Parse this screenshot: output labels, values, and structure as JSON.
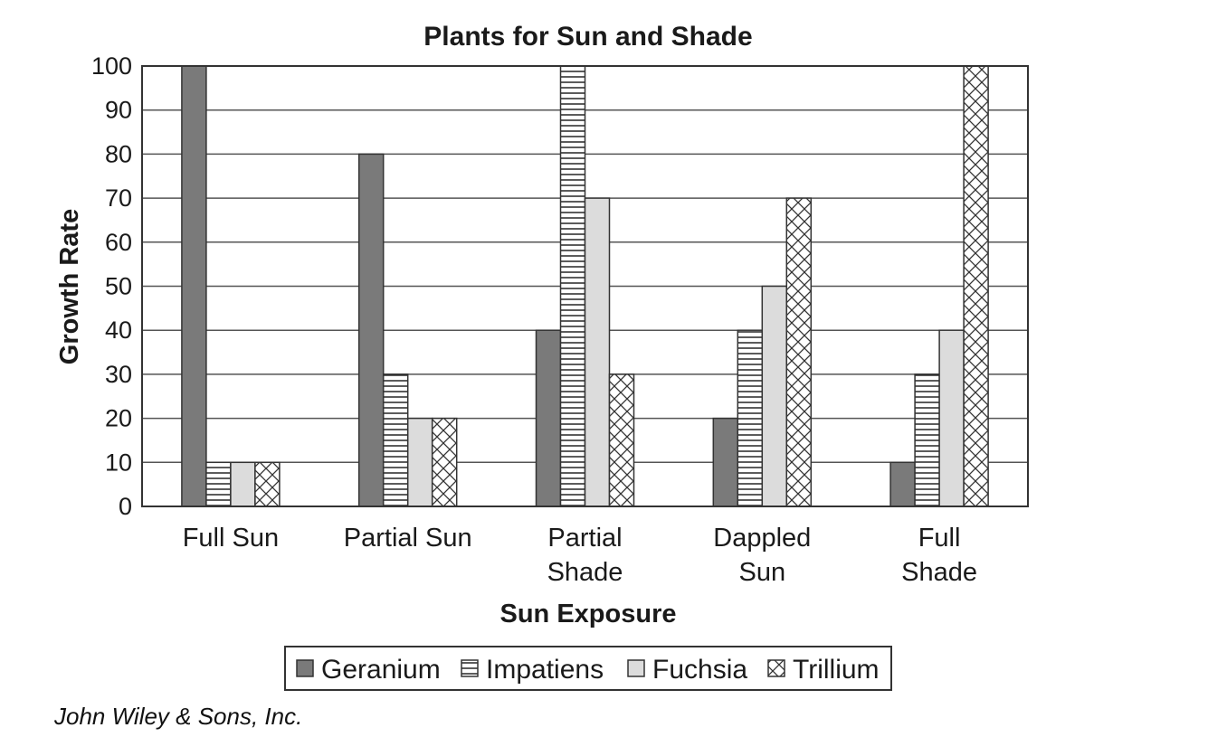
{
  "chart_data": {
    "type": "bar",
    "title": "Plants for Sun and Shade",
    "xlabel": "Sun Exposure",
    "ylabel": "Growth Rate",
    "ylim": [
      0,
      100
    ],
    "yticks": [
      "0",
      "10",
      "20",
      "30",
      "40",
      "50",
      "60",
      "70",
      "80",
      "90",
      "100"
    ],
    "grid": true,
    "legend_position": "bottom",
    "categories": [
      [
        "Full Sun"
      ],
      [
        "Partial Sun"
      ],
      [
        "Partial",
        "Shade"
      ],
      [
        "Dappled",
        "Sun"
      ],
      [
        "Full",
        "Shade"
      ]
    ],
    "series": [
      {
        "name": "Geranium",
        "pattern": "solid-dark",
        "color": "#7a7a7a",
        "values": [
          100,
          80,
          40,
          20,
          10
        ]
      },
      {
        "name": "Impatiens",
        "pattern": "horizontal-lines",
        "color": "#ffffff",
        "values": [
          10,
          30,
          100,
          40,
          30
        ]
      },
      {
        "name": "Fuchsia",
        "pattern": "solid-light",
        "color": "#dcdcdc",
        "values": [
          10,
          20,
          70,
          50,
          40
        ]
      },
      {
        "name": "Trillium",
        "pattern": "crosshatch",
        "color": "#ffffff",
        "values": [
          10,
          20,
          30,
          70,
          100
        ]
      }
    ]
  },
  "credit": "John Wiley & Sons, Inc."
}
